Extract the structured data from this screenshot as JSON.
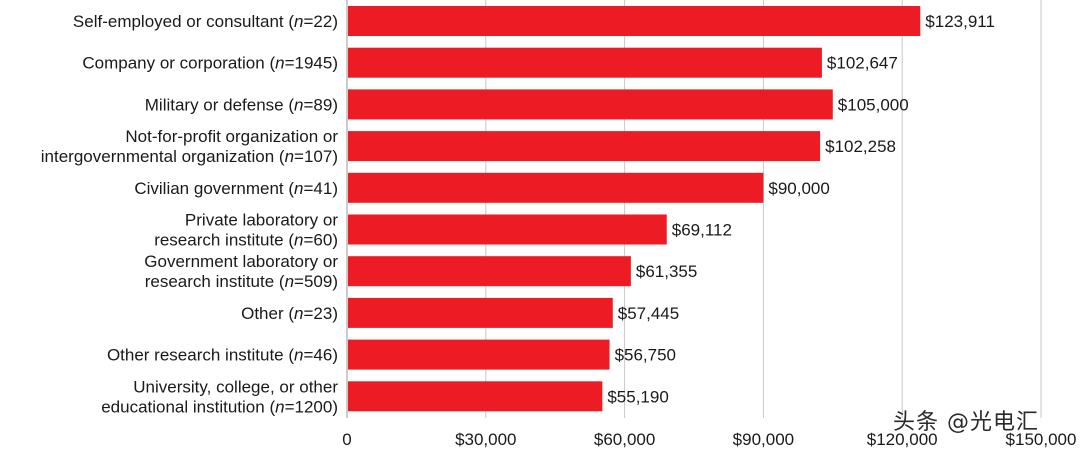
{
  "chart_data": {
    "type": "bar",
    "orientation": "horizontal",
    "categories": [
      {
        "text": "Self-employed or consultant",
        "n": "22"
      },
      {
        "text": "Company or corporation",
        "n": "1945"
      },
      {
        "text": "Military or defense",
        "n": "89"
      },
      {
        "text": "Not-for-profit organization or|intergovernmental organization",
        "n": "107"
      },
      {
        "text": "Civilian government",
        "n": "41"
      },
      {
        "text": "Private laboratory or|research institute",
        "n": "60"
      },
      {
        "text": "Government laboratory or|research institute",
        "n": "509"
      },
      {
        "text": "Other",
        "n": "23"
      },
      {
        "text": "Other research institute",
        "n": "46"
      },
      {
        "text": "University, college, or other|educational institution",
        "n": "1200"
      }
    ],
    "values": [
      123911,
      102647,
      105000,
      102258,
      90000,
      69112,
      61355,
      57445,
      56750,
      55190
    ],
    "value_labels": [
      "$123,911",
      "$102,647",
      "$105,000",
      "$102,258",
      "$90,000",
      "$69,112",
      "$61,355",
      "$57,445",
      "$56,750",
      "$55,190"
    ],
    "xlim": [
      0,
      150000
    ],
    "xticks": [
      0,
      30000,
      60000,
      90000,
      120000,
      150000
    ],
    "xtick_labels": [
      "0",
      "$30,000",
      "$60,000",
      "$90,000",
      "$120,000",
      "$150,000"
    ],
    "grid": true,
    "bar_color": "#ed1c24",
    "grid_color": "#c8c8c8"
  },
  "watermark": "头条 @光电汇"
}
